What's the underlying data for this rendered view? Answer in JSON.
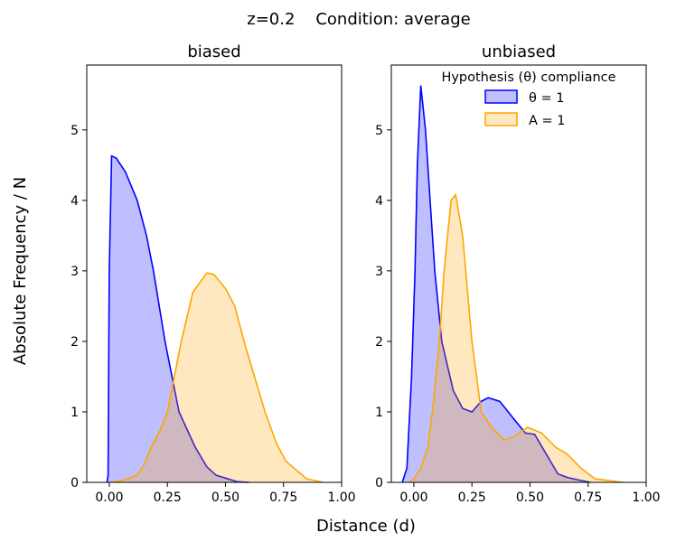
{
  "chart_data": {
    "title": "z=0.2    Condition: average",
    "xlabel": "Distance (d)",
    "ylabel": "Absolute Frequency / N",
    "colors": {
      "theta": "#0000ff",
      "A": "#ffa500"
    },
    "legend": {
      "title": "Hypothesis (θ) compliance",
      "placement": "top-right",
      "entries": [
        "θ = 1",
        "A = 1"
      ]
    },
    "xticks": [
      "0.00",
      "0.25",
      "0.50",
      "0.75",
      "1.00"
    ],
    "yticks": [
      "0",
      "1",
      "2",
      "3",
      "4",
      "5"
    ],
    "panels": [
      {
        "type": "area",
        "title": "biased",
        "xlim": [
          -0.097,
          1.0
        ],
        "ylim": [
          0,
          5.92
        ],
        "series": [
          {
            "name": "θ = 1",
            "x": [
              -0.01,
              -0.005,
              0.0,
              0.01,
              0.03,
              0.07,
              0.12,
              0.16,
              0.19,
              0.24,
              0.3,
              0.37,
              0.42,
              0.46,
              0.55,
              0.6
            ],
            "y": [
              0,
              0.1,
              3.0,
              4.63,
              4.6,
              4.4,
              4.0,
              3.5,
              3.0,
              2.0,
              1.0,
              0.5,
              0.22,
              0.1,
              0.01,
              0
            ]
          },
          {
            "name": "A = 1",
            "x": [
              0.0,
              0.05,
              0.12,
              0.15,
              0.18,
              0.22,
              0.25,
              0.31,
              0.36,
              0.42,
              0.45,
              0.5,
              0.54,
              0.58,
              0.67,
              0.72,
              0.76,
              0.85,
              0.92
            ],
            "y": [
              0,
              0.02,
              0.1,
              0.25,
              0.5,
              0.75,
              1.0,
              2.0,
              2.7,
              2.97,
              2.95,
              2.75,
              2.5,
              2.0,
              1.0,
              0.55,
              0.3,
              0.05,
              0
            ]
          }
        ]
      },
      {
        "type": "area",
        "title": "unbiased",
        "xlim": [
          -0.097,
          1.0
        ],
        "ylim": [
          0,
          5.92
        ],
        "series": [
          {
            "name": "θ = 1",
            "x": [
              -0.05,
              -0.03,
              -0.01,
              0.005,
              0.015,
              0.03,
              0.05,
              0.07,
              0.09,
              0.12,
              0.17,
              0.21,
              0.25,
              0.29,
              0.32,
              0.37,
              0.43,
              0.48,
              0.52,
              0.57,
              0.62,
              0.66,
              0.7,
              0.76
            ],
            "y": [
              0,
              0.2,
              1.5,
              3.0,
              4.5,
              5.63,
              5.0,
              4.0,
              3.0,
              2.0,
              1.3,
              1.05,
              1.0,
              1.15,
              1.2,
              1.15,
              0.9,
              0.7,
              0.68,
              0.4,
              0.12,
              0.07,
              0.04,
              0
            ]
          },
          {
            "name": "A = 1",
            "x": [
              -0.02,
              0.0,
              0.03,
              0.06,
              0.08,
              0.11,
              0.13,
              0.16,
              0.18,
              0.21,
              0.25,
              0.29,
              0.33,
              0.39,
              0.43,
              0.49,
              0.55,
              0.61,
              0.66,
              0.72,
              0.78,
              0.9
            ],
            "y": [
              0,
              0.05,
              0.2,
              0.5,
              1.0,
              2.0,
              3.0,
              4.0,
              4.08,
              3.5,
              2.0,
              1.0,
              0.8,
              0.6,
              0.65,
              0.78,
              0.7,
              0.5,
              0.4,
              0.2,
              0.05,
              0
            ]
          }
        ]
      }
    ]
  }
}
